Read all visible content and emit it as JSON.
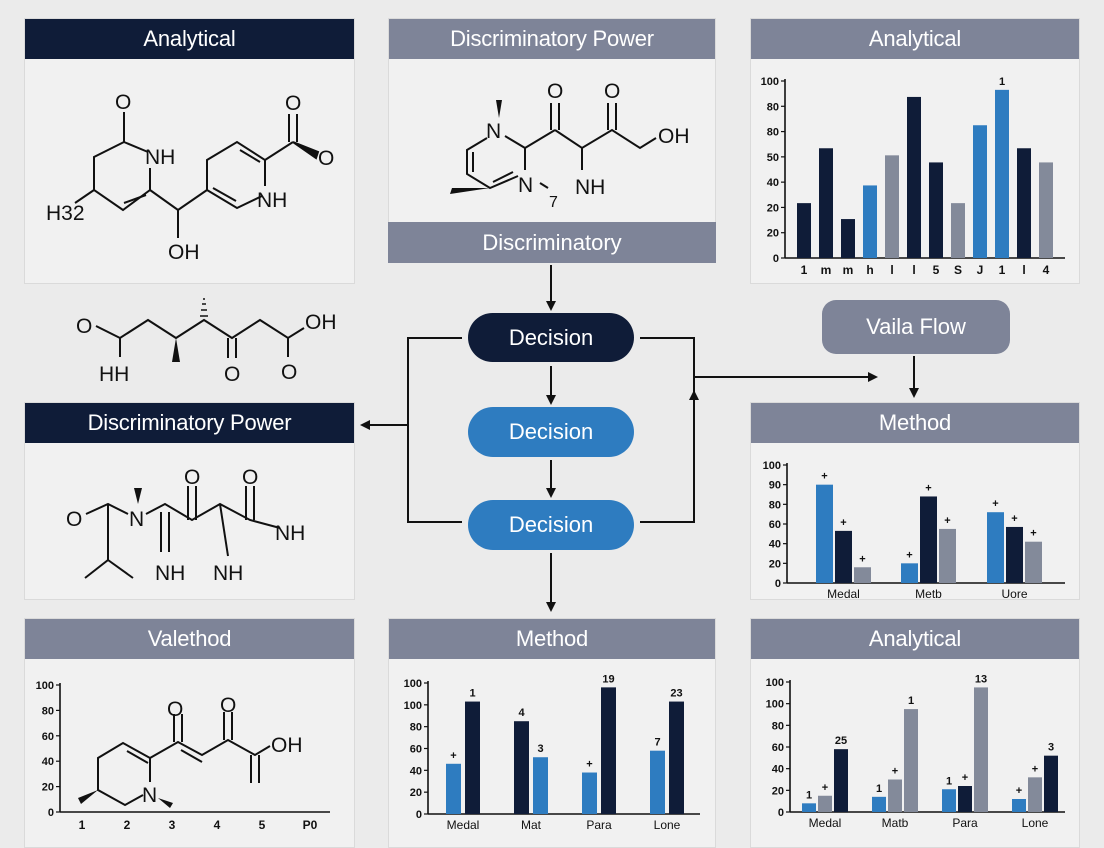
{
  "colors": {
    "navy": "#0f1c38",
    "blue": "#2e7cc0",
    "gray": "#838a9a",
    "header_gray": "#7e8498",
    "background": "#ebebeb"
  },
  "panels": {
    "top_left": {
      "title": "Analytical"
    },
    "top_center": {
      "title": "Discriminatory Power",
      "band": "Discriminatory"
    },
    "top_right": {
      "title": "Analytical"
    },
    "mid_left": {
      "title": "Discriminatory Power"
    },
    "mid_right": {
      "title": "Method"
    },
    "bottom_left": {
      "title": "Valethod"
    },
    "bottom_center": {
      "title": "Method"
    },
    "bottom_right": {
      "title": "Analytical"
    }
  },
  "flow": {
    "decision_1": "Decision",
    "decision_2": "Decision",
    "decision_3": "Decision",
    "side_node": "Vaila Flow"
  },
  "molecules": {
    "m1": {
      "labels": [
        "O",
        "NH",
        "H32",
        "OH",
        "NH",
        "O",
        "O"
      ]
    },
    "m2": {
      "labels": [
        "N",
        "N",
        "7",
        "NH",
        "O",
        "O",
        "OH"
      ]
    },
    "m3": {
      "labels": [
        "O",
        "HH",
        "O",
        "O",
        "OH"
      ]
    },
    "m4": {
      "labels": [
        "O",
        "N",
        "O",
        "O",
        "NH",
        "NH",
        "NH"
      ]
    },
    "m5": {
      "labels": [
        "O",
        "O",
        "OH",
        "N"
      ]
    }
  },
  "chart_data": [
    {
      "id": "top_right",
      "type": "bar",
      "title": "Analytical",
      "ylim": [
        0,
        100
      ],
      "ytick_labels": [
        "0",
        "20",
        "20",
        "40",
        "50",
        "80",
        "80",
        "100"
      ],
      "categories": [
        "1",
        "m",
        "m",
        "h",
        "l",
        "l",
        "5",
        "S",
        "J",
        "1",
        "l",
        "4"
      ],
      "bars": [
        {
          "value": 31,
          "color": "navy"
        },
        {
          "value": 62,
          "color": "navy"
        },
        {
          "value": 22,
          "color": "navy"
        },
        {
          "value": 41,
          "color": "blue"
        },
        {
          "value": 58,
          "color": "gray"
        },
        {
          "value": 91,
          "color": "navy"
        },
        {
          "value": 54,
          "color": "navy"
        },
        {
          "value": 31,
          "color": "gray"
        },
        {
          "value": 75,
          "color": "blue"
        },
        {
          "value": 95,
          "color": "blue",
          "label": "1"
        },
        {
          "value": 62,
          "color": "navy"
        },
        {
          "value": 54,
          "color": "gray"
        }
      ],
      "grid": false
    },
    {
      "id": "mid_right",
      "type": "bar",
      "title": "Method",
      "ytick_labels": [
        "0",
        "20",
        "40",
        "60",
        "80",
        "90",
        "100"
      ],
      "categories": [
        "Medal",
        "Metb",
        "Uore"
      ],
      "groups": [
        [
          {
            "value": 90,
            "color": "blue",
            "label": "+"
          },
          {
            "value": 53,
            "color": "navy",
            "label": "+"
          },
          {
            "value": 16,
            "color": "gray",
            "label": "+"
          }
        ],
        [
          {
            "value": 20,
            "color": "blue",
            "label": "+"
          },
          {
            "value": 84,
            "color": "navy",
            "label": "+"
          },
          {
            "value": 55,
            "color": "gray",
            "label": "+"
          }
        ],
        [
          {
            "value": 72,
            "color": "blue",
            "label": "+"
          },
          {
            "value": 57,
            "color": "navy",
            "label": "+"
          },
          {
            "value": 42,
            "color": "gray",
            "label": "+"
          }
        ]
      ],
      "grid": false
    },
    {
      "id": "bottom_center",
      "type": "bar",
      "title": "Method",
      "ylim": [
        0,
        120
      ],
      "ytick_labels": [
        "0",
        "20",
        "40",
        "60",
        "80",
        "100",
        "100"
      ],
      "categories": [
        "Medal",
        "Mat",
        "Para",
        "Lone"
      ],
      "groups": [
        [
          {
            "value": 46,
            "color": "blue",
            "label": "+"
          },
          {
            "value": 103,
            "color": "navy",
            "label": "1"
          }
        ],
        [
          {
            "value": 85,
            "color": "navy",
            "label": "4"
          },
          {
            "value": 52,
            "color": "blue",
            "label": "3"
          }
        ],
        [
          {
            "value": 38,
            "color": "blue",
            "label": "+"
          },
          {
            "value": 116,
            "color": "navy",
            "label": "19"
          }
        ],
        [
          {
            "value": 58,
            "color": "blue",
            "label": "7"
          },
          {
            "value": 103,
            "color": "navy",
            "label": "23"
          }
        ]
      ],
      "grid": false
    },
    {
      "id": "bottom_right",
      "type": "bar",
      "title": "Analytical",
      "ylim": [
        0,
        120
      ],
      "ytick_labels": [
        "0",
        "20",
        "40",
        "60",
        "80",
        "100",
        "100"
      ],
      "categories": [
        "Medal",
        "Matb",
        "Para",
        "Lone"
      ],
      "groups": [
        [
          {
            "value": 8,
            "color": "blue",
            "label": "1"
          },
          {
            "value": 15,
            "color": "gray",
            "label": "+"
          },
          {
            "value": 58,
            "color": "navy",
            "label": "25"
          }
        ],
        [
          {
            "value": 14,
            "color": "blue",
            "label": "1"
          },
          {
            "value": 30,
            "color": "gray",
            "label": "+"
          },
          {
            "value": 95,
            "color": "gray",
            "label": "1"
          }
        ],
        [
          {
            "value": 21,
            "color": "blue",
            "label": "1"
          },
          {
            "value": 24,
            "color": "navy",
            "label": "+"
          },
          {
            "value": 115,
            "color": "gray",
            "label": "13"
          }
        ],
        [
          {
            "value": 12,
            "color": "blue",
            "label": "+"
          },
          {
            "value": 32,
            "color": "gray",
            "label": "+"
          },
          {
            "value": 52,
            "color": "navy",
            "label": "3"
          }
        ]
      ],
      "grid": false
    },
    {
      "id": "bottom_left",
      "type": "axes",
      "title": "Valethod",
      "ytick_labels": [
        "0",
        "20",
        "40",
        "60",
        "80",
        "100"
      ],
      "categories": [
        "1",
        "2",
        "3",
        "4",
        "5",
        "P0"
      ],
      "grid": false
    }
  ]
}
